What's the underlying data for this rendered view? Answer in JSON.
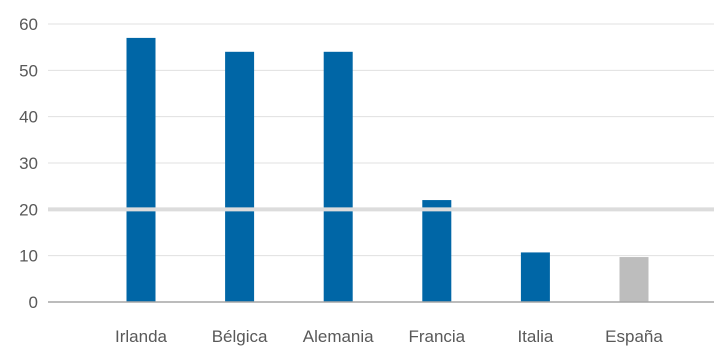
{
  "chart_data": {
    "type": "bar",
    "categories": [
      "Irlanda",
      "Bélgica",
      "Alemania",
      "Francia",
      "Italia",
      "España"
    ],
    "values": [
      57,
      54,
      54,
      22,
      10.7,
      9.7
    ],
    "ylim": [
      0,
      60
    ],
    "yticks": [
      "0",
      "10",
      "20",
      "30",
      "40",
      "50",
      "60"
    ],
    "reference_line": 20,
    "grid": true,
    "legend": "none",
    "colors": {
      "bar": "#0066a6",
      "highlight_bar": "#bdbdbd",
      "highlight_category": "España",
      "grid": "#e0e0e0",
      "reference_line": "#dcdcdc",
      "axis": "#a6a6a6"
    }
  }
}
